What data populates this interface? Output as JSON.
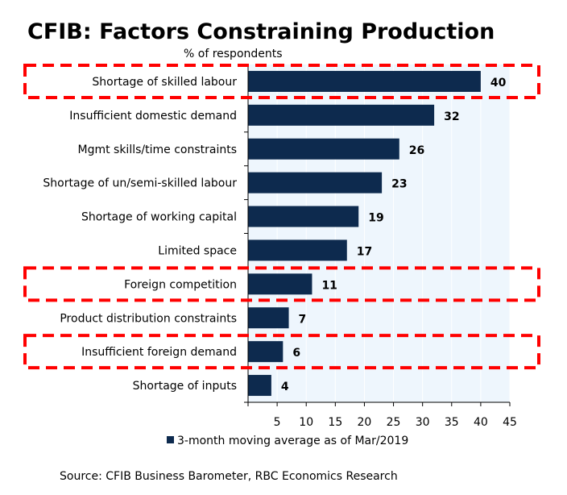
{
  "chart_data": {
    "type": "bar",
    "orientation": "horizontal",
    "title": "CFIB: Factors Constraining Production",
    "subtitle": "% of respondents",
    "categories": [
      "Shortage of skilled labour",
      "Insufficient domestic demand",
      "Mgmt skills/time constraints",
      "Shortage of un/semi-skilled labour",
      "Shortage of working capital",
      "Limited space",
      "Foreign competition",
      "Product distribution constraints",
      "Insufficient foreign demand",
      "Shortage of inputs"
    ],
    "values": [
      40,
      32,
      26,
      23,
      19,
      17,
      11,
      7,
      6,
      4
    ],
    "highlighted": [
      "Shortage of skilled labour",
      "Foreign competition",
      "Insufficient foreign demand"
    ],
    "xlim": [
      0,
      45
    ],
    "xticks": [
      5,
      10,
      15,
      20,
      25,
      30,
      35,
      40,
      45
    ],
    "grid": true,
    "legend": {
      "label": "3-month moving average as of Mar/2019",
      "position": "bottom"
    },
    "source": "Source: CFIB Business Barometer, RBC Economics Research",
    "colors": {
      "bar": "#0d2a4e",
      "plot_bg": "#eef6fd",
      "highlight": "#ff0000"
    }
  }
}
